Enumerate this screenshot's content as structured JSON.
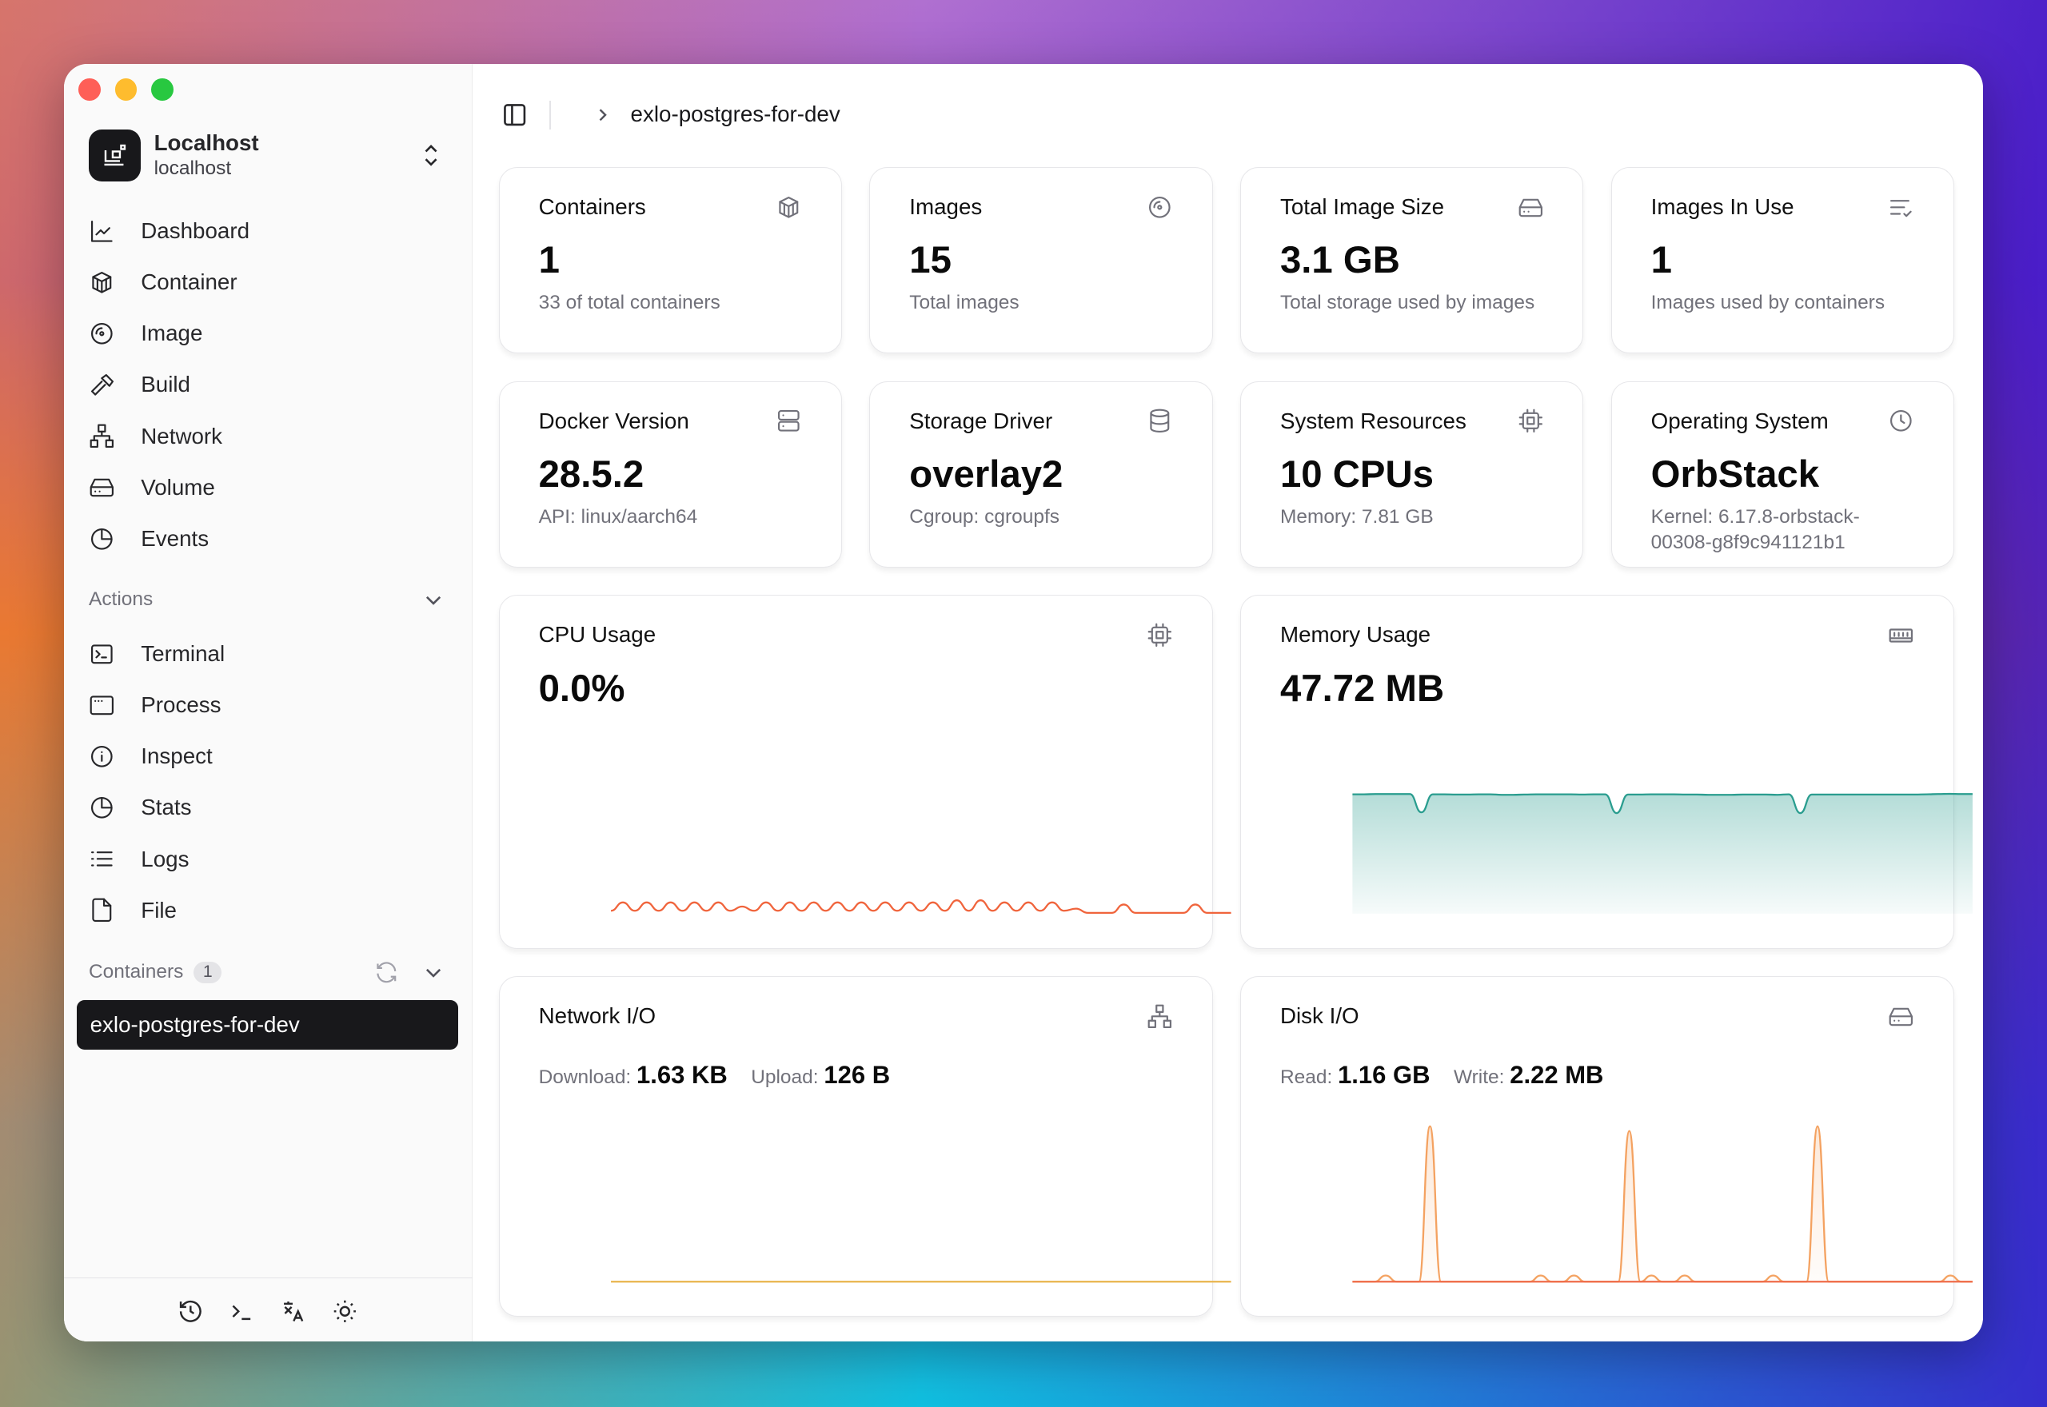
{
  "window": {
    "controls": [
      "close",
      "minimize",
      "maximize"
    ]
  },
  "sidebar": {
    "host": {
      "name": "Localhost",
      "address": "localhost",
      "icon": "server-icon"
    },
    "nav": [
      {
        "label": "Dashboard",
        "icon": "chart-line-icon"
      },
      {
        "label": "Container",
        "icon": "box-icon"
      },
      {
        "label": "Image",
        "icon": "disc-icon"
      },
      {
        "label": "Build",
        "icon": "hammer-icon"
      },
      {
        "label": "Network",
        "icon": "network-icon"
      },
      {
        "label": "Volume",
        "icon": "hard-drive-icon"
      },
      {
        "label": "Events",
        "icon": "pie-chart-icon"
      }
    ],
    "actions_label": "Actions",
    "actions": [
      {
        "label": "Terminal",
        "icon": "terminal-icon"
      },
      {
        "label": "Process",
        "icon": "window-icon"
      },
      {
        "label": "Inspect",
        "icon": "info-icon"
      },
      {
        "label": "Stats",
        "icon": "pie-chart-icon"
      },
      {
        "label": "Logs",
        "icon": "list-icon"
      },
      {
        "label": "File",
        "icon": "file-icon"
      }
    ],
    "containers_label": "Containers",
    "containers_count": "1",
    "containers": [
      "exlo-postgres-for-dev"
    ],
    "footer_icons": [
      "history-icon",
      "terminal-icon",
      "translate-icon",
      "sun-icon"
    ]
  },
  "header": {
    "breadcrumb": "exlo-postgres-for-dev"
  },
  "stats": [
    {
      "title": "Containers",
      "value": "1",
      "sub": "33 of total containers",
      "icon": "box-icon"
    },
    {
      "title": "Images",
      "value": "15",
      "sub": "Total images",
      "icon": "disc-icon"
    },
    {
      "title": "Total Image Size",
      "value": "3.1 GB",
      "sub": "Total storage used by images",
      "icon": "hard-drive-icon"
    },
    {
      "title": "Images In Use",
      "value": "1",
      "sub": "Images used by containers",
      "icon": "list-check-icon"
    },
    {
      "title": "Docker Version",
      "value": "28.5.2",
      "sub": "API: linux/aarch64",
      "icon": "server-icon"
    },
    {
      "title": "Storage Driver",
      "value": "overlay2",
      "sub": "Cgroup: cgroupfs",
      "icon": "database-icon"
    },
    {
      "title": "System Resources",
      "value": "10 CPUs",
      "sub": "Memory: 7.81 GB",
      "icon": "cpu-icon"
    },
    {
      "title": "Operating System",
      "value": "OrbStack",
      "sub": "Kernel: 6.17.8-orbstack-00308-g8f9c941121b1",
      "icon": "clock-icon"
    }
  ],
  "cpu": {
    "title": "CPU Usage",
    "value": "0.0%",
    "icon": "cpu-icon"
  },
  "memory": {
    "title": "Memory Usage",
    "value": "47.72 MB",
    "icon": "memory-icon"
  },
  "network": {
    "title": "Network I/O",
    "download_label": "Download:",
    "download": "1.63 KB",
    "upload_label": "Upload:",
    "upload": "126 B",
    "icon": "network-icon"
  },
  "disk": {
    "title": "Disk I/O",
    "read_label": "Read:",
    "read": "1.16 GB",
    "write_label": "Write:",
    "write": "2.22 MB",
    "icon": "hard-drive-icon"
  },
  "colors": {
    "cpu": "#f0643c",
    "memory": "#2a9d8f",
    "network": "#e9b44c",
    "disk_read": "#f4a261",
    "disk_write": "#ef6c4a",
    "selected": "#18181b"
  },
  "chart_data": [
    {
      "type": "line",
      "name": "cpu",
      "values": [
        0.2,
        0.6,
        0.2,
        0.6,
        0.2,
        0.6,
        0.2,
        0.6,
        0.2,
        0.6,
        0.2,
        0.4,
        0.2,
        0.6,
        0.2,
        0.6,
        0.2,
        0.6,
        0.2,
        0.6,
        0.2,
        0.6,
        0.2,
        0.6,
        0.2,
        0.6,
        0.2,
        0.6,
        0.2,
        0.7,
        0.2,
        0.7,
        0.2,
        0.6,
        0.2,
        0.6,
        0.2,
        0.6,
        0.2,
        0.3,
        0.1,
        0.1,
        0.1,
        0.5,
        0.1,
        0.1,
        0.1,
        0.1,
        0.1,
        0.5,
        0.1,
        0.1,
        0.1
      ],
      "ylim": [
        0,
        5
      ]
    },
    {
      "type": "area",
      "name": "memory",
      "values": [
        47.7,
        47.7,
        47.8,
        47.8,
        47.8,
        47.8,
        40.5,
        47.7,
        47.7,
        47.6,
        47.6,
        47.7,
        47.7,
        47.5,
        47.5,
        47.6,
        47.7,
        47.7,
        47.7,
        47.7,
        47.6,
        47.7,
        47.7,
        40.2,
        47.6,
        47.6,
        47.7,
        47.7,
        47.7,
        47.6,
        47.6,
        47.5,
        47.5,
        47.5,
        47.6,
        47.6,
        47.6,
        47.5,
        47.7,
        40.2,
        47.6,
        47.6,
        47.6,
        47.6,
        47.6,
        47.6,
        47.6,
        47.6,
        47.6,
        47.6,
        47.7,
        47.8,
        47.9,
        47.8,
        47.8
      ],
      "ylim": [
        0,
        60
      ]
    },
    {
      "type": "line",
      "name": "network",
      "values": [
        0,
        0,
        0,
        0,
        0,
        0,
        0,
        0,
        0,
        0
      ],
      "ylim": [
        0,
        1
      ]
    },
    {
      "type": "area",
      "name": "disk",
      "series": [
        {
          "name": "read",
          "values": [
            0,
            0,
            0,
            4,
            0,
            0,
            0,
            100,
            0,
            0,
            0,
            0,
            0,
            0,
            0,
            0,
            0,
            4,
            0,
            0,
            4,
            0,
            0,
            0,
            0,
            97,
            0,
            4,
            0,
            0,
            4,
            0,
            0,
            0,
            0,
            0,
            0,
            0,
            4,
            0,
            0,
            0,
            100,
            0,
            0,
            0,
            0,
            0,
            0,
            0,
            0,
            0,
            0,
            0,
            4,
            0,
            0
          ]
        },
        {
          "name": "write",
          "values": [
            0,
            0,
            0,
            0,
            0,
            0,
            0,
            0,
            0,
            0
          ]
        }
      ],
      "ylim": [
        0,
        105
      ]
    }
  ]
}
